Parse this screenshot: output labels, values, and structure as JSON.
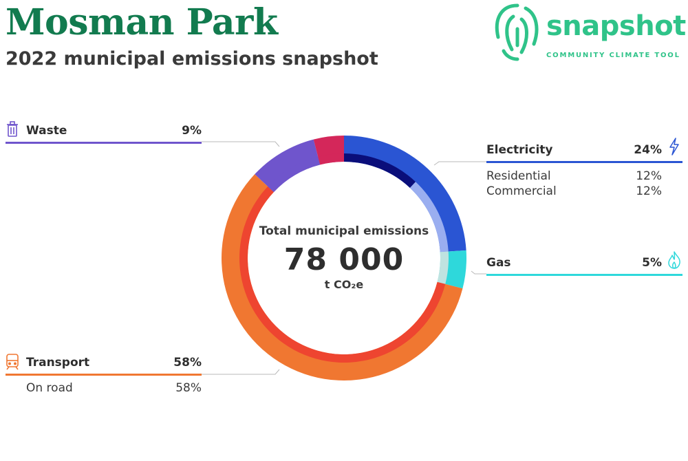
{
  "header": {
    "title": "Mosman Park",
    "subtitle": "2022 municipal emissions snapshot"
  },
  "logo": {
    "wordmark": "snapshot",
    "tagline": "COMMUNITY CLIMATE TOOL",
    "color": "#2fc389",
    "icon": "fingerprint-icon"
  },
  "chart_data": {
    "type": "pie",
    "variant": "donut-nested",
    "center": {
      "label": "Total municipal emissions",
      "value": "78 000",
      "unit": "t CO₂e"
    },
    "sectors": [
      {
        "name": "Electricity",
        "value": 24,
        "percent_label": "24%",
        "color": "#2a55d3",
        "icon": "lightning-icon",
        "subsectors": [
          {
            "name": "Residential",
            "value": 12,
            "percent_label": "12%",
            "color": "#0a0e7a"
          },
          {
            "name": "Commercial",
            "value": 12,
            "percent_label": "12%",
            "color": "#9aaef0"
          }
        ]
      },
      {
        "name": "Gas",
        "value": 5,
        "percent_label": "5%",
        "color": "#2ed8db",
        "icon": "flame-icon",
        "subsectors": [
          {
            "name": "",
            "value": 5,
            "color": "#bfe3e0"
          }
        ]
      },
      {
        "name": "Transport",
        "value": 58,
        "percent_label": "58%",
        "color": "#f07731",
        "icon": "train-icon",
        "subsectors": [
          {
            "name": "On road",
            "value": 58,
            "percent_label": "58%",
            "color": "#ee4530"
          }
        ]
      },
      {
        "name": "Waste",
        "value": 9,
        "percent_label": "9%",
        "color": "#6f55cc",
        "icon": "trash-icon",
        "subsectors": [
          {
            "name": "",
            "value": 9,
            "color": "#6f55cc"
          }
        ]
      },
      {
        "name": "",
        "value": 4,
        "color": "#d4275a",
        "subsectors": [
          {
            "name": "",
            "value": 4,
            "color": "#d4275a"
          }
        ]
      }
    ]
  }
}
